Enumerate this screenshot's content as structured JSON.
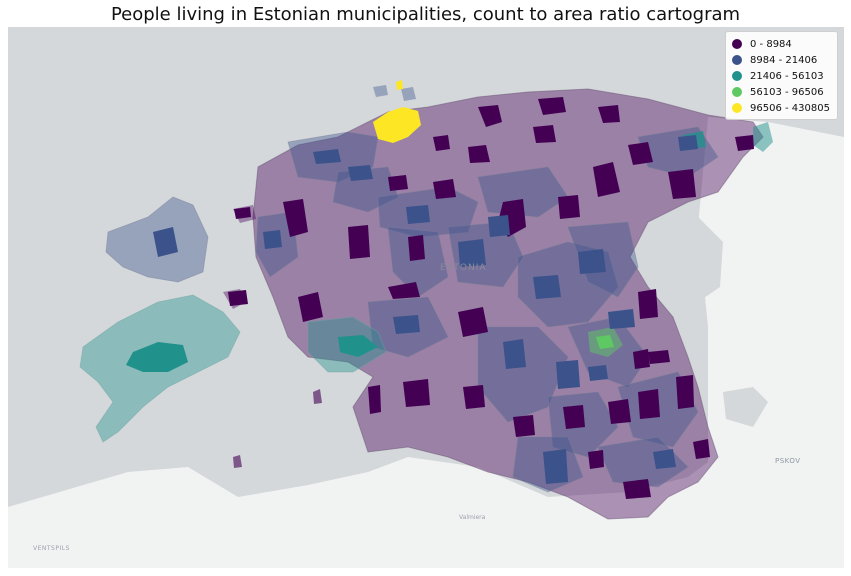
{
  "title": "People living in Estonian municipalities, count to area ratio cartogram",
  "legend": {
    "items": [
      {
        "label": "0 - 8984",
        "color": "#440154"
      },
      {
        "label": "8984 - 21406",
        "color": "#3b528b"
      },
      {
        "label": "21406 - 56103",
        "color": "#21918c"
      },
      {
        "label": "56103 - 96506",
        "color": "#5ec962"
      },
      {
        "label": "96506 - 430805",
        "color": "#fde725"
      }
    ]
  },
  "basemap": {
    "labels": {
      "estonia": "ESTONIA",
      "pskov": "PSKOV",
      "valmiera": "Valmiera",
      "ventspils": "VENTSPILS"
    },
    "colors": {
      "sea": "#d4d8db",
      "land": "#f1f2f2",
      "lake": "#cfd4d8"
    }
  },
  "choropleth": {
    "class_colors": [
      "#440154",
      "#3b528b",
      "#21918c",
      "#5ec962",
      "#fde725"
    ],
    "region_opacity": 0.4
  }
}
